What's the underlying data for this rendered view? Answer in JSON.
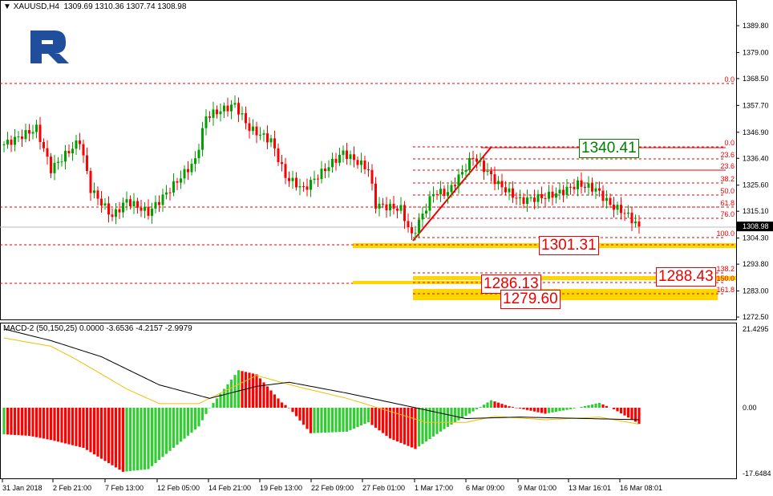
{
  "header": {
    "symbol": "XAUUSD,H4",
    "ohlc": "1309.69 1310.36 1307.74 1308.98"
  },
  "macd": {
    "title": "MACD-2 (50,150,25) 0.0000 -3.6536 -4.2157 -2.9979"
  },
  "colors": {
    "bull": "#00a000",
    "bear": "#ff0000",
    "hist_up": "#32cd32",
    "hist_down": "#ff0000",
    "signal": "#000000",
    "yellow": "#ffd700",
    "logo": "#1f4e9c"
  },
  "chart_data": {
    "type": "candlestick",
    "price_axis": {
      "ticks": [
        "1389.80",
        "1379.00",
        "1368.50",
        "1357.70",
        "1346.90",
        "1336.40",
        "1325.60",
        "1315.10",
        "1304.30",
        "1293.80",
        "1283.00",
        "1272.50"
      ],
      "range": [
        1272.5,
        1389.8
      ],
      "current": "1308.98"
    },
    "macd_axis": {
      "ticks": [
        "21.4295",
        "0.00",
        "-17.6484"
      ],
      "range": [
        -17.6484,
        21.4295
      ]
    },
    "time_labels": [
      "31 Jan 2018",
      "2 Feb 21:00",
      "7 Feb 13:00",
      "12 Feb 05:00",
      "14 Feb 21:00",
      "19 Feb 13:00",
      "22 Feb 09:00",
      "27 Feb 01:00",
      "1 Mar 17:00",
      "6 Mar 09:00",
      "9 Mar 01:00",
      "13 Mar 16:01",
      "16 Mar 08:01"
    ],
    "price_path": [
      [
        0,
        1342
      ],
      [
        9,
        1348.4
      ],
      [
        13,
        1332
      ],
      [
        21,
        1343.6
      ],
      [
        24,
        1324
      ],
      [
        30,
        1313
      ],
      [
        34,
        1319.4
      ],
      [
        40,
        1314.5
      ],
      [
        46,
        1324
      ],
      [
        53,
        1335.5
      ],
      [
        56,
        1353.3
      ],
      [
        64,
        1358
      ],
      [
        68,
        1348.4
      ],
      [
        74,
        1343.6
      ],
      [
        78,
        1329
      ],
      [
        83,
        1324
      ],
      [
        88,
        1330.7
      ],
      [
        94,
        1338.7
      ],
      [
        101,
        1332
      ],
      [
        103,
        1317.7
      ],
      [
        110,
        1316
      ],
      [
        113,
        1305
      ],
      [
        119,
        1322.6
      ],
      [
        123,
        1322.6
      ],
      [
        130,
        1337
      ],
      [
        132,
        1334
      ],
      [
        137,
        1326
      ],
      [
        143,
        1319.4
      ],
      [
        150,
        1321
      ],
      [
        154,
        1322.6
      ],
      [
        159,
        1326
      ],
      [
        164,
        1324
      ],
      [
        168,
        1317.7
      ],
      [
        172,
        1314.5
      ],
      [
        176,
        1308.98
      ]
    ],
    "macd_hist": [
      [
        0,
        -7.1
      ],
      [
        7,
        -7.5
      ],
      [
        13,
        -8.6
      ],
      [
        22,
        -10.7
      ],
      [
        33,
        -17.1
      ],
      [
        40,
        -16.4
      ],
      [
        54,
        -5
      ],
      [
        57,
        0
      ],
      [
        65,
        10
      ],
      [
        70,
        8.9
      ],
      [
        77,
        1.4
      ],
      [
        79,
        0
      ],
      [
        85,
        -6.8
      ],
      [
        95,
        -6.4
      ],
      [
        101,
        -3.9
      ],
      [
        107,
        -8.2
      ],
      [
        114,
        -11
      ],
      [
        122,
        -5.7
      ],
      [
        131,
        -0.4
      ],
      [
        135,
        2
      ],
      [
        140,
        0.4
      ],
      [
        150,
        -1.6
      ],
      [
        157,
        -0.4
      ],
      [
        165,
        1.3
      ],
      [
        169,
        -0.4
      ],
      [
        176,
        -4.3
      ]
    ],
    "macd_line_black": [
      [
        0,
        21
      ],
      [
        13,
        17.9
      ],
      [
        27,
        13.6
      ],
      [
        43,
        6.1
      ],
      [
        57,
        2.5
      ],
      [
        70,
        5.7
      ],
      [
        79,
        6.8
      ],
      [
        95,
        3.9
      ],
      [
        114,
        0
      ],
      [
        128,
        -2.9
      ],
      [
        143,
        -2.5
      ],
      [
        176,
        -3.2
      ]
    ],
    "macd_line_yellow": [
      [
        0,
        18.6
      ],
      [
        13,
        16.4
      ],
      [
        20,
        12.9
      ],
      [
        34,
        5
      ],
      [
        43,
        1.1
      ],
      [
        54,
        1.1
      ],
      [
        70,
        8.6
      ],
      [
        81,
        5.7
      ],
      [
        95,
        2.5
      ],
      [
        117,
        -3.9
      ],
      [
        128,
        -3.9
      ],
      [
        136,
        -2.3
      ],
      [
        150,
        -3.2
      ],
      [
        165,
        -2.5
      ],
      [
        176,
        -4.4
      ]
    ]
  },
  "fibo": {
    "levels": [
      {
        "label": "0.0",
        "price": 1368.5
      },
      {
        "label": "0.0",
        "price": 1340.4
      },
      {
        "label": "23.6",
        "price": 1335.6
      },
      {
        "label": "23.6",
        "price": 1331.2
      },
      {
        "label": "38.2",
        "price": 1326.3
      },
      {
        "label": "50.0",
        "price": 1321.4
      },
      {
        "label": "61.8",
        "price": 1316.6
      },
      {
        "label": "76.0",
        "price": 1312.0
      },
      {
        "label": "100.0",
        "price": 1304.1
      },
      {
        "label": "138.2",
        "price": 1290.6
      },
      {
        "label": "150.0",
        "price": 1287.6
      },
      {
        "label": "161.8",
        "price": 1283.5
      }
    ],
    "targets": [
      "1340.41",
      "1301.31",
      "1288.43",
      "1286.13",
      "1279.60"
    ]
  }
}
